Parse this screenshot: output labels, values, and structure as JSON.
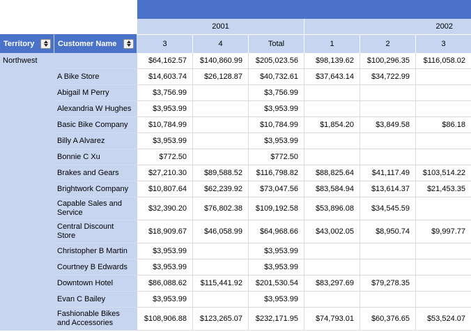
{
  "colors": {
    "header_blue": "#4a72c8",
    "header_light_blue": "#c7d5f1"
  },
  "report": {
    "corner": {
      "territory_label": "Territory",
      "customer_label": "Customer Name"
    },
    "year_groups": [
      {
        "label": "2001"
      },
      {
        "label": "2002"
      }
    ],
    "quarter_headers": [
      "3",
      "4",
      "Total",
      "1",
      "2",
      "3"
    ],
    "territory": "Northwest",
    "rows": [
      {
        "customer": "",
        "values": [
          "$64,162.57",
          "$140,860.99",
          "$205,023.56",
          "$98,139.62",
          "$100,296.35",
          "$116,058.02"
        ]
      },
      {
        "customer": "A Bike Store",
        "values": [
          "$14,603.74",
          "$26,128.87",
          "$40,732.61",
          "$37,643.14",
          "$34,722.99",
          ""
        ]
      },
      {
        "customer": "Abigail M Perry",
        "values": [
          "$3,756.99",
          "",
          "$3,756.99",
          "",
          "",
          ""
        ]
      },
      {
        "customer": "Alexandria W Hughes",
        "values": [
          "$3,953.99",
          "",
          "$3,953.99",
          "",
          "",
          ""
        ]
      },
      {
        "customer": "Basic Bike Company",
        "values": [
          "$10,784.99",
          "",
          "$10,784.99",
          "$1,854.20",
          "$3,849.58",
          "$86.18"
        ]
      },
      {
        "customer": "Billy A Alvarez",
        "values": [
          "$3,953.99",
          "",
          "$3,953.99",
          "",
          "",
          ""
        ]
      },
      {
        "customer": "Bonnie C Xu",
        "values": [
          "$772.50",
          "",
          "$772.50",
          "",
          "",
          ""
        ]
      },
      {
        "customer": "Brakes and Gears",
        "values": [
          "$27,210.30",
          "$89,588.52",
          "$116,798.82",
          "$88,825.64",
          "$41,117.49",
          "$103,514.22"
        ]
      },
      {
        "customer": "Brightwork Company",
        "values": [
          "$10,807.64",
          "$62,239.92",
          "$73,047.56",
          "$83,584.94",
          "$13,614.37",
          "$21,453.35"
        ]
      },
      {
        "customer": "Capable Sales and Service",
        "values": [
          "$32,390.20",
          "$76,802.38",
          "$109,192.58",
          "$53,896.08",
          "$34,545.59",
          ""
        ]
      },
      {
        "customer": "Central Discount Store",
        "values": [
          "$18,909.67",
          "$46,058.99",
          "$64,968.66",
          "$43,002.05",
          "$8,950.74",
          "$9,997.77"
        ]
      },
      {
        "customer": "Christopher B Martin",
        "values": [
          "$3,953.99",
          "",
          "$3,953.99",
          "",
          "",
          ""
        ]
      },
      {
        "customer": "Courtney B Edwards",
        "values": [
          "$3,953.99",
          "",
          "$3,953.99",
          "",
          "",
          ""
        ]
      },
      {
        "customer": "Downtown Hotel",
        "values": [
          "$86,088.62",
          "$115,441.92",
          "$201,530.54",
          "$83,297.69",
          "$79,278.35",
          ""
        ]
      },
      {
        "customer": "Evan C Bailey",
        "values": [
          "$3,953.99",
          "",
          "$3,953.99",
          "",
          "",
          ""
        ]
      },
      {
        "customer": "Fashionable Bikes and Accessories",
        "values": [
          "$108,906.88",
          "$123,265.07",
          "$232,171.95",
          "$74,793.01",
          "$60,376.65",
          "$53,524.07"
        ]
      }
    ]
  }
}
